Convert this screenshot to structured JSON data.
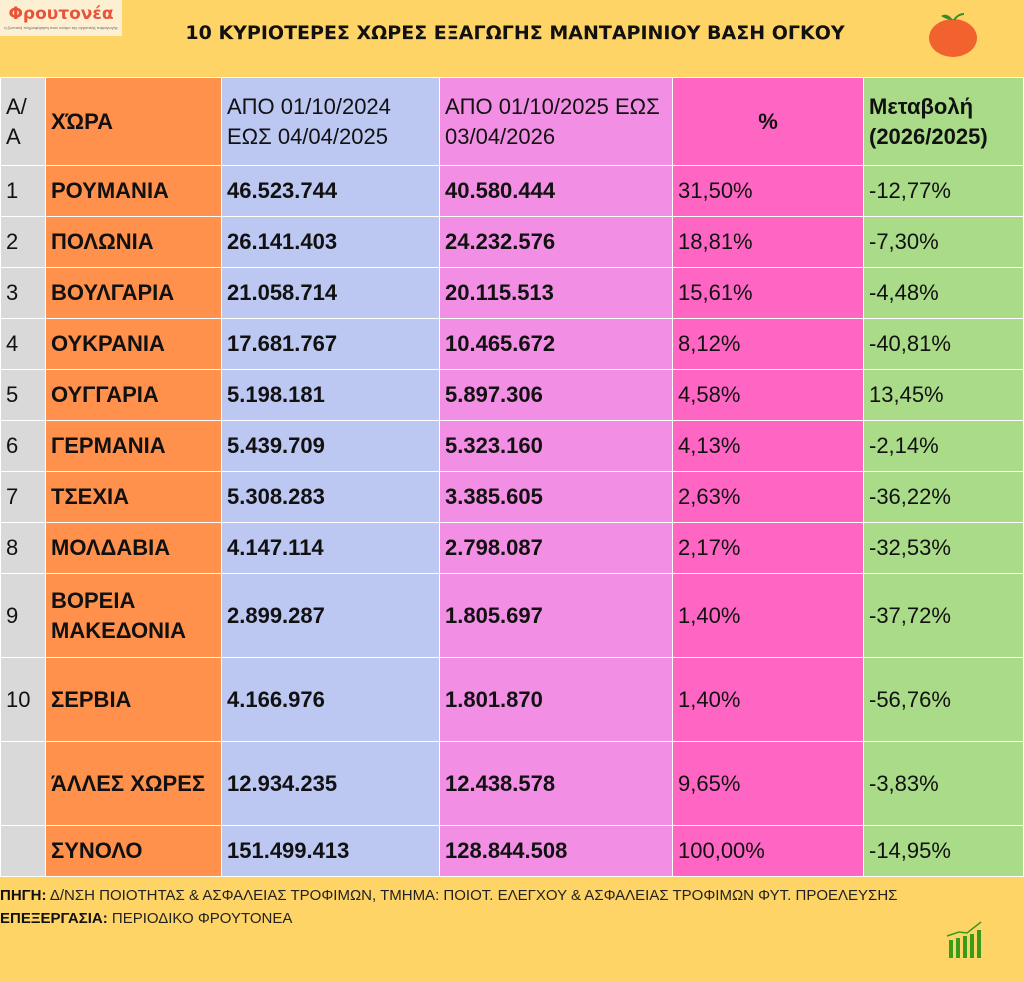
{
  "logo": {
    "brand": "Φρουτονέα",
    "tagline": "η ζωντανή πληροφόρηση στον κόσμο της αγροτικής παραγωγής"
  },
  "title": "10 ΚΥΡΙΟΤΕΡΕΣ ΧΩΡΕΣ ΕΞΑΓΩΓΗΣ ΜΑΝΤΑΡΙΝΙΟΥ ΒΑΣΗ ΟΓΚΟΥ",
  "headers": [
    "Α/Α",
    "ΧΏΡΑ",
    "ΑΠΟ 01/10/2024 ΕΩΣ  04/04/2025",
    "ΑΠΟ 01/10/2025 ΕΩΣ 03/04/2026",
    "%",
    "Μεταβολή (2026/2025)"
  ],
  "rows": [
    [
      "1",
      "ΡΟΥΜΑΝΙΑ",
      "46.523.744",
      "40.580.444",
      "31,50%",
      "-12,77%"
    ],
    [
      "2",
      "ΠΟΛΩΝΙΑ",
      "26.141.403",
      "24.232.576",
      "18,81%",
      "-7,30%"
    ],
    [
      "3",
      "ΒΟΥΛΓΑΡΙΑ",
      "21.058.714",
      "20.115.513",
      "15,61%",
      "-4,48%"
    ],
    [
      "4",
      "ΟΥΚΡΑΝΙΑ",
      "17.681.767",
      "10.465.672",
      "8,12%",
      "-40,81%"
    ],
    [
      "5",
      "ΟΥΓΓΑΡΙΑ",
      "5.198.181",
      "5.897.306",
      "4,58%",
      "13,45%"
    ],
    [
      "6",
      "ΓΕΡΜΑΝΙΑ",
      "5.439.709",
      "5.323.160",
      "4,13%",
      "-2,14%"
    ],
    [
      "7",
      "ΤΣΕΧΙΑ",
      "5.308.283",
      "3.385.605",
      "2,63%",
      "-36,22%"
    ],
    [
      "8",
      "ΜΟΛΔΑΒΙΑ",
      "4.147.114",
      "2.798.087",
      "2,17%",
      "-32,53%"
    ],
    [
      "9",
      "ΒΟΡΕΙΑ ΜΑΚΕΔΟΝΙΑ",
      "2.899.287",
      "1.805.697",
      "1,40%",
      "-37,72%"
    ],
    [
      "10",
      "ΣΕΡΒΙΑ",
      "4.166.976",
      "1.801.870",
      "1,40%",
      "-56,76%"
    ],
    [
      "",
      "ΆΛΛΕΣ ΧΩΡΕΣ",
      "12.934.235",
      "12.438.578",
      "9,65%",
      "-3,83%"
    ],
    [
      "",
      "ΣΥΝΟΛΟ",
      "151.499.413",
      "128.844.508",
      "100,00%",
      "-14,95%"
    ]
  ],
  "footer": {
    "source_label": "ΠΗΓΗ:",
    "source_text": " Δ/ΝΣΗ ΠΟΙΟΤΗΤΑΣ & ΑΣΦΑΛΕΙΑΣ ΤΡΟΦΙΜΩΝ, ΤΜΗΜΑ: ΠΟΙΟΤ. ΕΛΕΓΧΟΥ & ΑΣΦΑΛΕΙΑΣ ΤΡΟΦΙΜΩΝ ΦΥΤ. ΠΡΟΕΛΕΥΣΗΣ",
    "processing_label": "ΕΠΕΞΕΡΓΑΣΙΑ:",
    "processing_text": " ΠΕΡΙΟΔΙΚΟ ΦΡΟΥΤΟΝΕΑ"
  }
}
